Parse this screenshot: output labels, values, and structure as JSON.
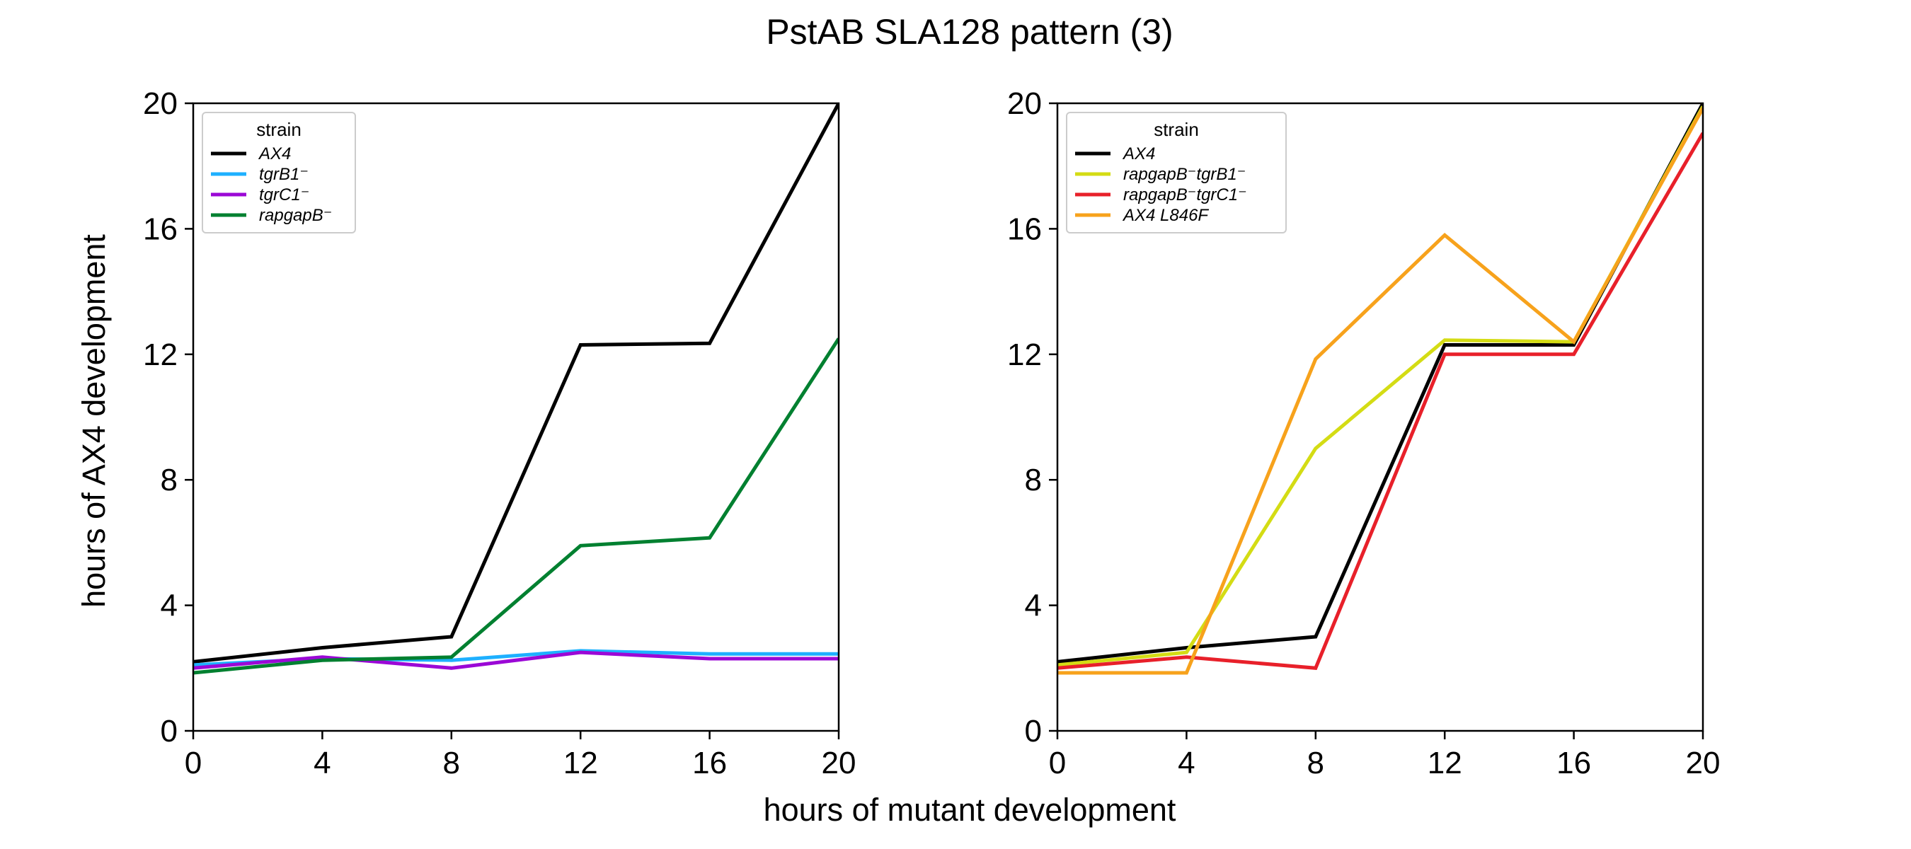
{
  "figure": {
    "title": "PstAB SLA128 pattern (3)",
    "xlabel": "hours of mutant development",
    "ylabel": "hours of AX4 development"
  },
  "chart_data": [
    {
      "type": "line",
      "xlim": [
        0,
        20
      ],
      "ylim": [
        0,
        20
      ],
      "xticks": [
        0,
        4,
        8,
        12,
        16,
        20
      ],
      "yticks": [
        0,
        4,
        8,
        12,
        16,
        20
      ],
      "grid": false,
      "legend": {
        "title": "strain",
        "placement": "top-left"
      },
      "x": [
        0,
        4,
        8,
        12,
        16,
        20
      ],
      "series": [
        {
          "name": "AX4",
          "color": "#000000",
          "values": [
            2.2,
            2.65,
            3.0,
            12.3,
            12.35,
            20.0
          ]
        },
        {
          "name": "tgrB1⁻",
          "color": "#1eb0ff",
          "values": [
            2.1,
            2.3,
            2.25,
            2.55,
            2.45,
            2.45
          ]
        },
        {
          "name": "tgrC1⁻",
          "color": "#9b08d6",
          "values": [
            2.0,
            2.35,
            2.0,
            2.5,
            2.3,
            2.3
          ]
        },
        {
          "name": "rapgapB⁻",
          "color": "#008030",
          "values": [
            1.85,
            2.25,
            2.35,
            5.9,
            6.15,
            12.5
          ]
        }
      ]
    },
    {
      "type": "line",
      "xlim": [
        0,
        20
      ],
      "ylim": [
        0,
        20
      ],
      "xticks": [
        0,
        4,
        8,
        12,
        16,
        20
      ],
      "yticks": [
        0,
        4,
        8,
        12,
        16,
        20
      ],
      "grid": false,
      "legend": {
        "title": "strain",
        "placement": "top-left"
      },
      "x": [
        0,
        4,
        8,
        12,
        16,
        20
      ],
      "series": [
        {
          "name": "AX4",
          "color": "#000000",
          "values": [
            2.2,
            2.65,
            3.0,
            12.3,
            12.3,
            20.0
          ]
        },
        {
          "name": "rapgapB⁻tgrB1⁻",
          "color": "#d4dc14",
          "values": [
            2.1,
            2.5,
            9.0,
            12.45,
            12.4,
            19.9
          ]
        },
        {
          "name": "rapgapB⁻tgrC1⁻",
          "color": "#e8202a",
          "values": [
            2.0,
            2.35,
            2.0,
            12.0,
            12.0,
            19.05
          ]
        },
        {
          "name": "AX4 L846F",
          "color": "#f7a21c",
          "values": [
            1.85,
            1.85,
            11.85,
            15.8,
            12.4,
            19.85
          ]
        }
      ]
    }
  ]
}
